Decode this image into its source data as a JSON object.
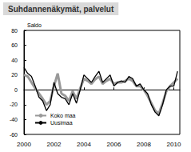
{
  "chart_data": {
    "type": "line",
    "title": "Suhdannenäkymät, palvelut",
    "y_label": "Saldo",
    "x": [
      2000,
      2000.25,
      2000.5,
      2000.75,
      2001,
      2001.25,
      2001.5,
      2001.75,
      2002,
      2002.25,
      2002.5,
      2002.75,
      2003,
      2003.25,
      2003.5,
      2003.75,
      2004,
      2004.25,
      2004.5,
      2004.75,
      2005,
      2005.25,
      2005.5,
      2005.75,
      2006,
      2006.25,
      2006.5,
      2006.75,
      2007,
      2007.25,
      2007.5,
      2007.75,
      2008,
      2008.25,
      2008.5,
      2008.75,
      2009,
      2009.25,
      2009.5,
      2009.75,
      2010,
      2010.25
    ],
    "series": [
      {
        "name": "Koko maa",
        "color": "#999999",
        "values": [
          20,
          18,
          10,
          2,
          -5,
          -12,
          -20,
          -15,
          5,
          22,
          -5,
          -8,
          -15,
          -2,
          -12,
          2,
          15,
          12,
          8,
          14,
          18,
          8,
          12,
          15,
          8,
          10,
          10,
          12,
          15,
          12,
          5,
          5,
          0,
          -8,
          -18,
          -28,
          -32,
          -18,
          -2,
          5,
          10,
          15
        ]
      },
      {
        "name": "Uusimaa",
        "color": "#000000",
        "values": [
          30,
          22,
          18,
          5,
          -10,
          -15,
          -28,
          -20,
          10,
          -5,
          -10,
          -12,
          -20,
          -5,
          -18,
          0,
          20,
          15,
          10,
          18,
          25,
          10,
          15,
          20,
          5,
          10,
          12,
          10,
          18,
          15,
          5,
          8,
          0,
          -5,
          -20,
          -30,
          -35,
          -20,
          0,
          5,
          5,
          25
        ]
      }
    ],
    "xlim": [
      2000,
      2010.4
    ],
    "xticks": [
      2000,
      2002,
      2004,
      2006,
      2008,
      2010
    ],
    "ylim": [
      -60,
      80
    ],
    "yticks": [
      -60,
      -40,
      -20,
      0,
      20,
      40,
      60,
      80
    ],
    "grid": false,
    "legend": "lower left"
  }
}
